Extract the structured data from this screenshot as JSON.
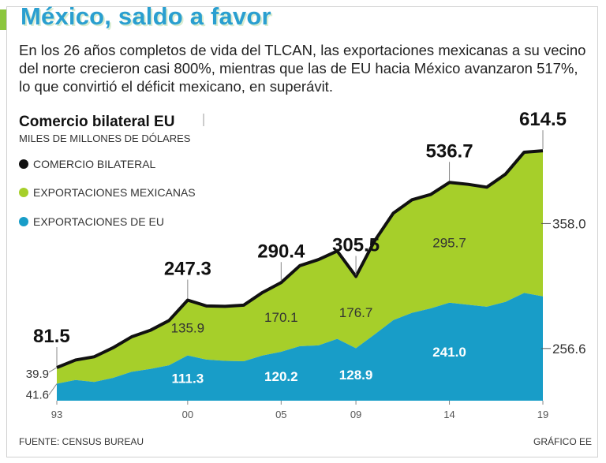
{
  "header": {
    "title": "México, saldo a favor",
    "description_lines": [
      "En los 26 años completos de vida del TLCAN, las exportaciones mexicanas a su vecino",
      "del norte crecieron casi 800%, mientras que las de EU hacia México avanzaron 517%,",
      "lo que convirtió el déficit mexicano, en superávit."
    ]
  },
  "colors": {
    "accent": "#8cc63f",
    "title": "#2a9fd0",
    "green": "#a6cf2a",
    "blue": "#189dc8",
    "black": "#111111"
  },
  "footer": {
    "source": "FUENTE: CENSUS BUREAU",
    "credit": "GRÁFICO EE"
  },
  "chart_data": {
    "type": "area",
    "title": "Comercio bilateral EU",
    "ylabel": "MILES DE MILLONES DE DÓLARES",
    "legend_placement": "top-left",
    "grid": false,
    "x": [
      1993,
      1994,
      1995,
      1996,
      1997,
      1998,
      1999,
      2000,
      2001,
      2002,
      2003,
      2004,
      2005,
      2006,
      2007,
      2008,
      2009,
      2010,
      2011,
      2012,
      2013,
      2014,
      2015,
      2016,
      2017,
      2018,
      2019
    ],
    "x_tick_labels": [
      "93",
      "00",
      "05",
      "09",
      "14",
      "19"
    ],
    "x_tick_years": [
      1993,
      2000,
      2005,
      2009,
      2014,
      2019
    ],
    "ylim": [
      0,
      640
    ],
    "series": [
      {
        "name": "COMERCIO BILATERAL",
        "values": [
          81.5,
          100.0,
          108.0,
          130.0,
          157.0,
          173.0,
          197.0,
          247.3,
          233.0,
          232.0,
          235.0,
          266.0,
          290.4,
          332.0,
          347.0,
          368.0,
          305.5,
          393.0,
          461.0,
          494.0,
          507.0,
          536.7,
          532.0,
          525.0,
          557.0,
          611.0,
          614.5
        ],
        "color": "#111111"
      },
      {
        "name": "EXPORTACIONES MEXICANAS",
        "values": [
          39.9,
          49.0,
          62.0,
          74.0,
          86.0,
          95.0,
          110.0,
          135.9,
          131.0,
          134.0,
          138.0,
          155.0,
          170.1,
          198.0,
          211.0,
          216.0,
          176.7,
          230.0,
          263.0,
          278.0,
          280.0,
          295.7,
          296.0,
          294.0,
          314.0,
          346.0,
          358.0
        ],
        "color": "#a6cf2a"
      },
      {
        "name": "EXPORTACIONES DE EU",
        "values": [
          41.6,
          51.0,
          46.0,
          56.0,
          71.0,
          78.0,
          87.0,
          111.3,
          101.0,
          98.0,
          97.0,
          111.0,
          120.2,
          134.0,
          136.0,
          152.0,
          128.9,
          163.0,
          198.0,
          216.0,
          227.0,
          241.0,
          236.0,
          231.0,
          243.0,
          265.0,
          256.6
        ],
        "color": "#189dc8"
      }
    ],
    "annotations": {
      "total_peaks": [
        {
          "year": 1993,
          "label": "81.5"
        },
        {
          "year": 2000,
          "label": "247.3"
        },
        {
          "year": 2005,
          "label": "290.4"
        },
        {
          "year": 2009,
          "label": "305.5"
        },
        {
          "year": 2014,
          "label": "536.7"
        },
        {
          "year": 2019,
          "label": "614.5"
        }
      ],
      "mex_labels": [
        {
          "year": 2000,
          "label": "135.9"
        },
        {
          "year": 2005,
          "label": "170.1"
        },
        {
          "year": 2009,
          "label": "176.7"
        },
        {
          "year": 2014,
          "label": "295.7"
        }
      ],
      "eu_labels": [
        {
          "year": 2000,
          "label": "111.3"
        },
        {
          "year": 2005,
          "label": "120.2"
        },
        {
          "year": 2009,
          "label": "128.9"
        },
        {
          "year": 2014,
          "label": "241.0"
        }
      ],
      "left_labels": [
        {
          "label": "39.9",
          "series": "mex"
        },
        {
          "label": "41.6",
          "series": "eu"
        }
      ],
      "right_labels": [
        {
          "label": "358.0",
          "series": "mex"
        },
        {
          "label": "256.6",
          "series": "eu"
        }
      ]
    }
  }
}
